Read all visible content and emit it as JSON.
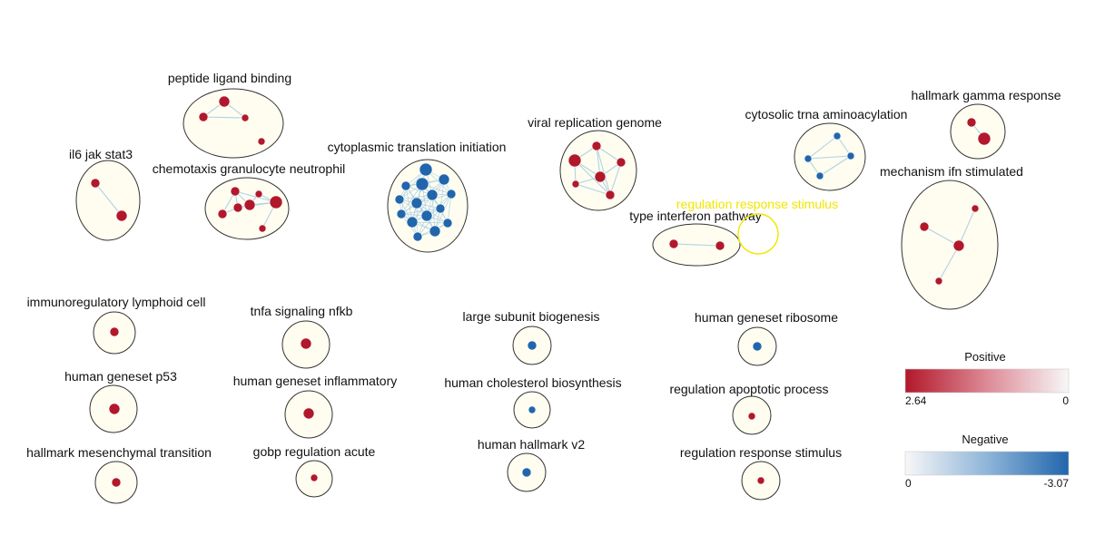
{
  "colors": {
    "positive": "#b2182b",
    "negative": "#2166ac",
    "cluster_fill": "#fefdf0",
    "cluster_stroke": "#333333",
    "edge": "#a8cde4",
    "highlight": "#f2e600"
  },
  "clusters": [
    {
      "label": "peptide ligand binding"
    },
    {
      "label": "il6 jak stat3"
    },
    {
      "label": "chemotaxis granulocyte neutrophil"
    },
    {
      "label": "cytoplasmic translation initiation"
    },
    {
      "label": "viral replication genome"
    },
    {
      "label": "cytosolic trna aminoacylation"
    },
    {
      "label": "hallmark gamma response"
    },
    {
      "label": "mechanism ifn stimulated"
    },
    {
      "label": "type interferon pathway"
    },
    {
      "label": "regulation response stimulus"
    },
    {
      "label": "immunoregulatory lymphoid cell"
    },
    {
      "label": "tnfa signaling nfkb"
    },
    {
      "label": "large subunit biogenesis"
    },
    {
      "label": "human geneset ribosome"
    },
    {
      "label": "human geneset p53"
    },
    {
      "label": "human geneset inflammatory"
    },
    {
      "label": "human cholesterol biosynthesis"
    },
    {
      "label": "regulation apoptotic process"
    },
    {
      "label": "hallmark mesenchymal transition"
    },
    {
      "label": "gobp regulation acute"
    },
    {
      "label": "human hallmark v2"
    },
    {
      "label": "regulation response stimulus"
    }
  ],
  "legend": {
    "positive": {
      "title": "Positive",
      "min_label": "2.64",
      "max_label": "0"
    },
    "negative": {
      "title": "Negative",
      "min_label": "0",
      "max_label": "-3.07"
    }
  }
}
